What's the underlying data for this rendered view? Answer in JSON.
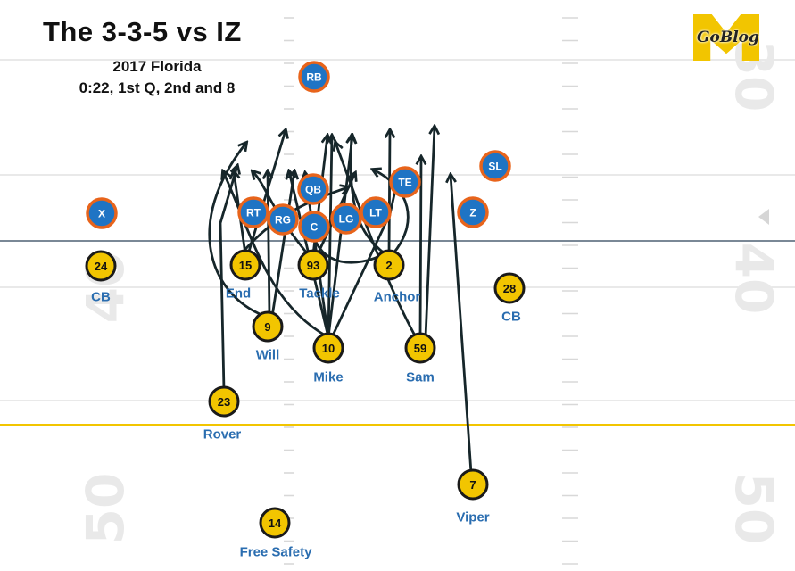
{
  "header": {
    "title": "The 3-3-5 vs IZ",
    "subtitle_game": "2017 Florida",
    "subtitle_situation": "0:22, 1st Q, 2nd and 8"
  },
  "logo": {
    "text": "GoBlog",
    "color": "#f2c500"
  },
  "field_numbers": [
    "30",
    "40",
    "50",
    "40",
    "50"
  ],
  "colors": {
    "offense_fill": "#1f74c4",
    "offense_ring": "#e8641b",
    "defense_fill": "#f2c500",
    "defense_ring": "#1a1a1a",
    "position_label": "#2a6db0",
    "arrow": "#16262a",
    "line_of_scrimmage": "#7a8896",
    "yellow_line": "#f2c500"
  },
  "offense": [
    {
      "id": "rb",
      "label": "RB"
    },
    {
      "id": "qb",
      "label": "QB"
    },
    {
      "id": "te",
      "label": "TE"
    },
    {
      "id": "sl",
      "label": "SL"
    },
    {
      "id": "x",
      "label": "X"
    },
    {
      "id": "rt",
      "label": "RT"
    },
    {
      "id": "rg",
      "label": "RG"
    },
    {
      "id": "c",
      "label": "C"
    },
    {
      "id": "lg",
      "label": "LG"
    },
    {
      "id": "lt",
      "label": "LT"
    },
    {
      "id": "z",
      "label": "Z"
    }
  ],
  "defense": [
    {
      "id": "cb-left",
      "number": "24",
      "position": "CB"
    },
    {
      "id": "end",
      "number": "15",
      "position": "End"
    },
    {
      "id": "tackle",
      "number": "93",
      "position": "Tackle"
    },
    {
      "id": "anchor",
      "number": "2",
      "position": "Anchor"
    },
    {
      "id": "cb-right",
      "number": "28",
      "position": "CB"
    },
    {
      "id": "will",
      "number": "9",
      "position": "Will"
    },
    {
      "id": "mike",
      "number": "10",
      "position": "Mike"
    },
    {
      "id": "sam",
      "number": "59",
      "position": "Sam"
    },
    {
      "id": "rover",
      "number": "23",
      "position": "Rover"
    },
    {
      "id": "viper",
      "number": "7",
      "position": "Viper"
    },
    {
      "id": "free-safety",
      "number": "14",
      "position": "Free Safety"
    }
  ]
}
